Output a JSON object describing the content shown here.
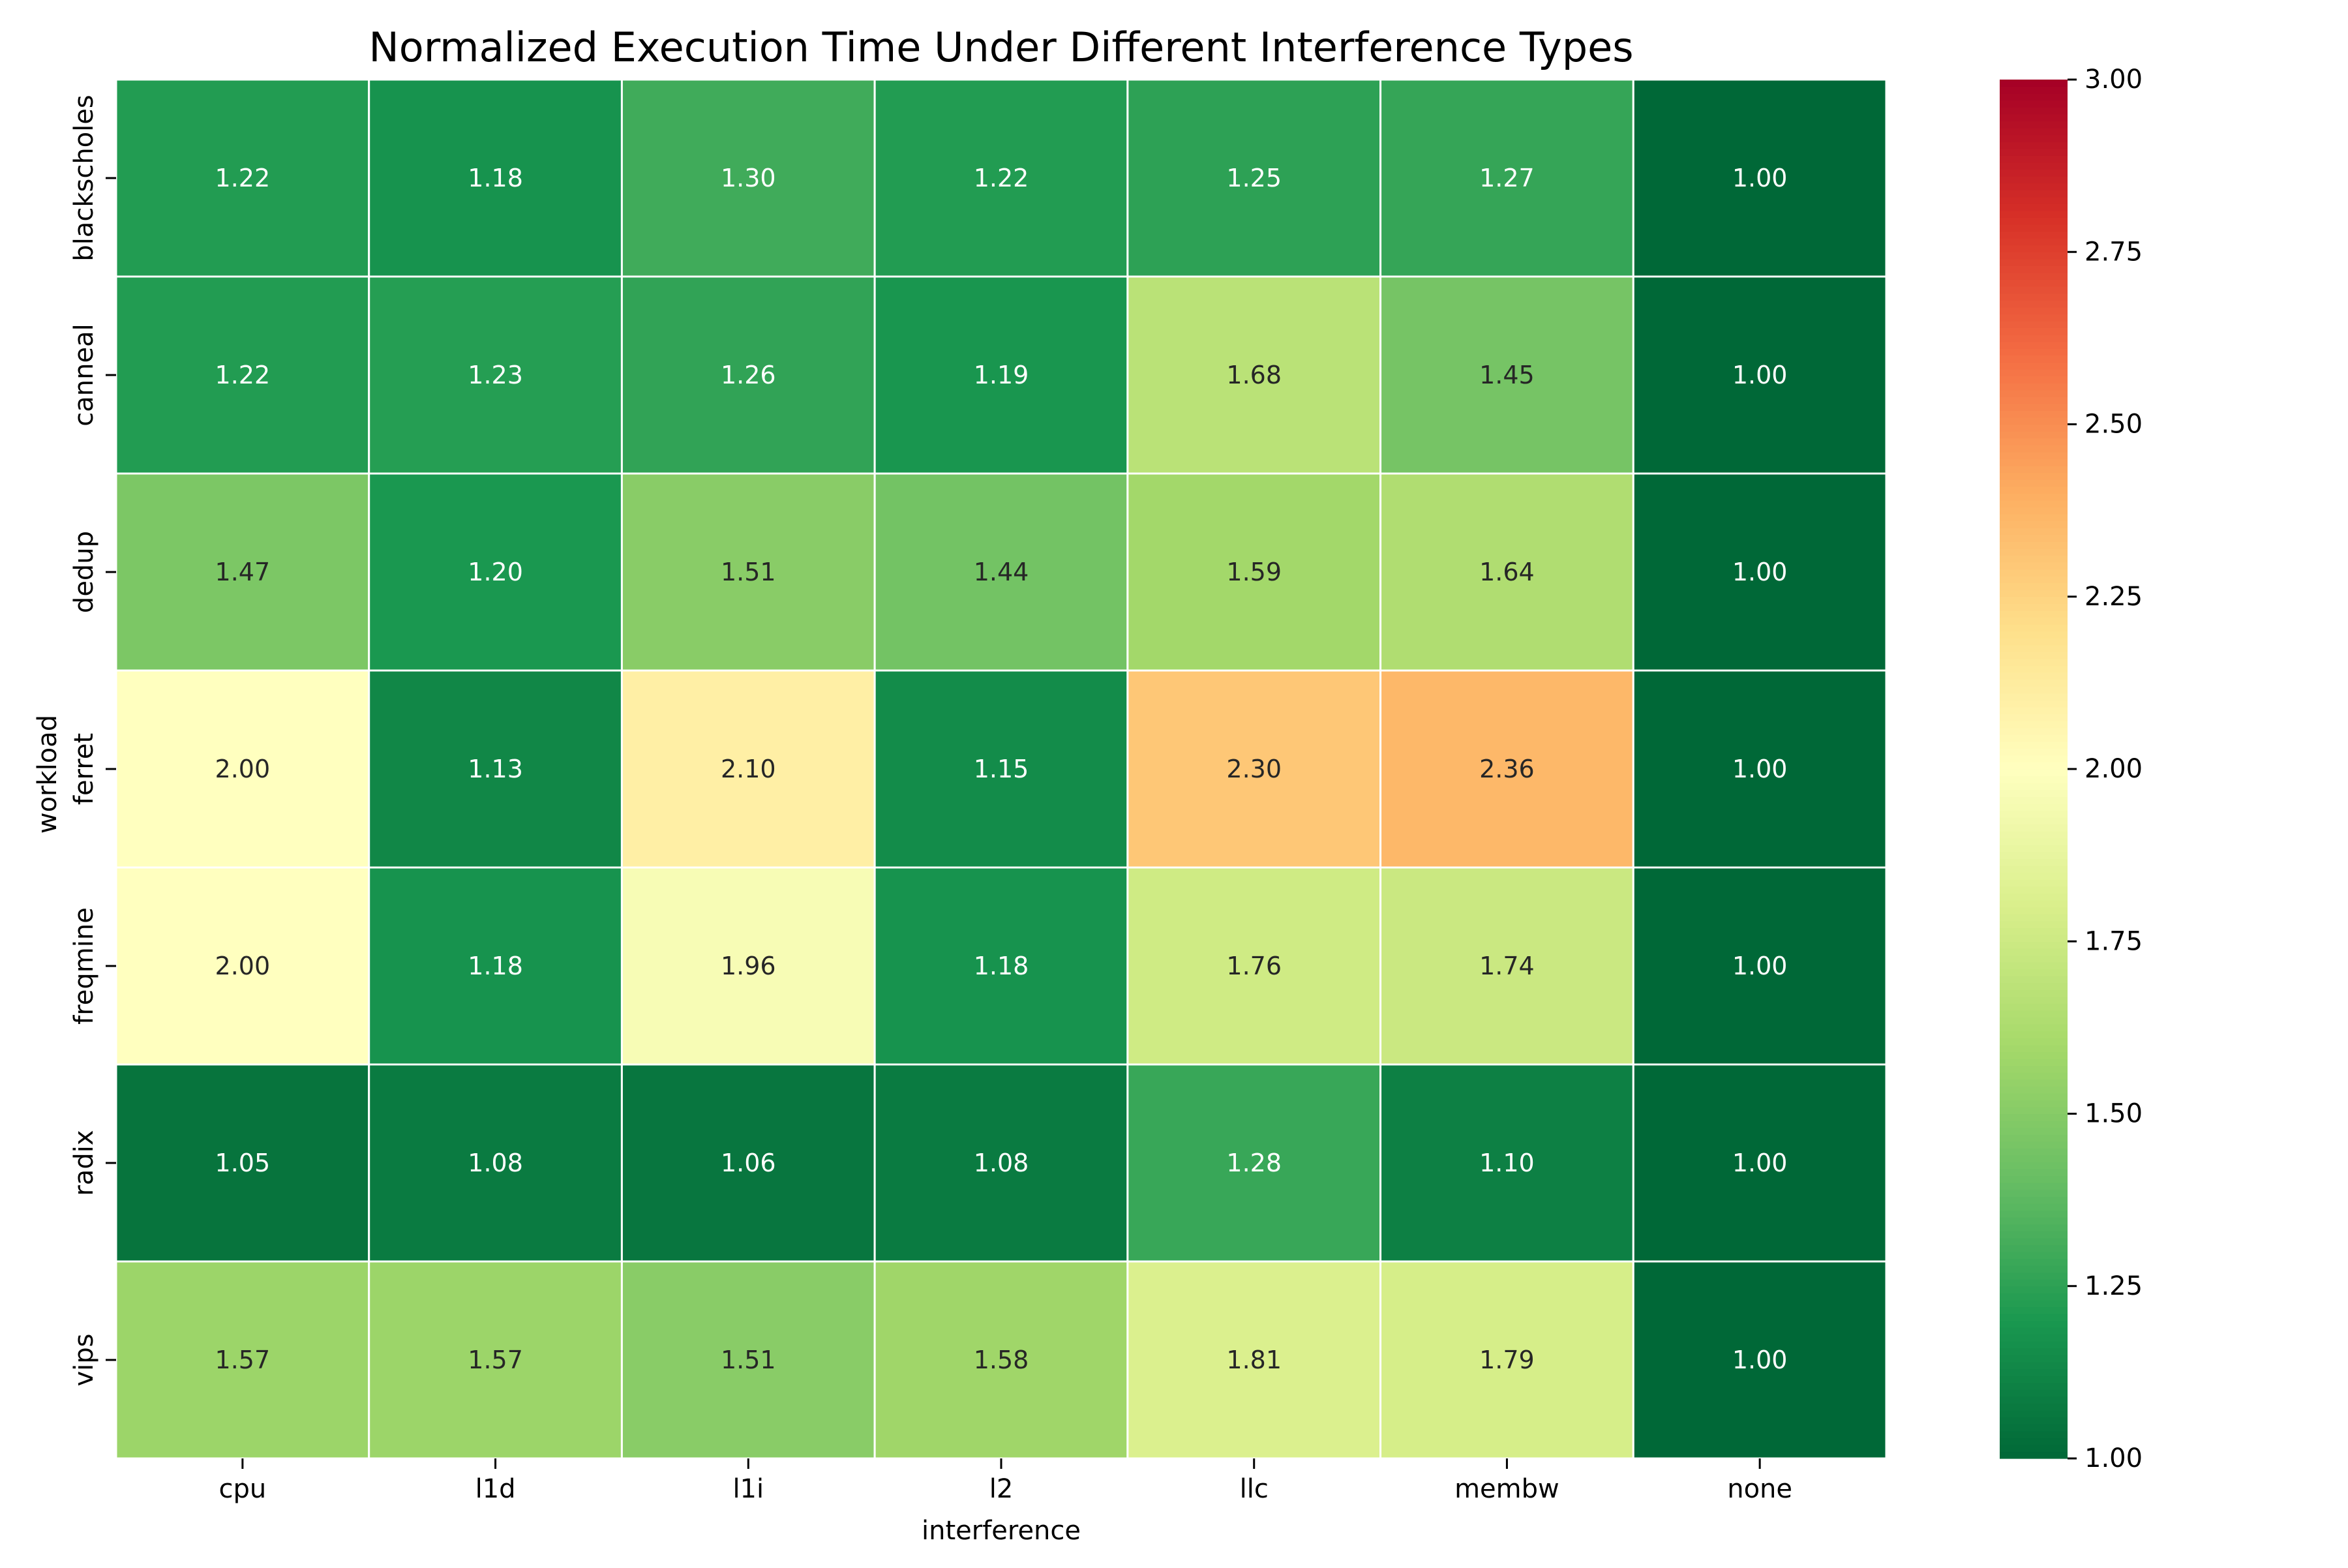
{
  "chart_data": {
    "type": "heatmap",
    "title": "Normalized Execution Time Under Different Interference Types",
    "xlabel": "interference",
    "ylabel": "workload",
    "x_categories": [
      "cpu",
      "l1d",
      "l1i",
      "l2",
      "llc",
      "membw",
      "none"
    ],
    "y_categories": [
      "blackscholes",
      "canneal",
      "dedup",
      "ferret",
      "freqmine",
      "radix",
      "vips"
    ],
    "values": [
      [
        1.22,
        1.18,
        1.3,
        1.22,
        1.25,
        1.27,
        1.0
      ],
      [
        1.22,
        1.23,
        1.26,
        1.19,
        1.68,
        1.45,
        1.0
      ],
      [
        1.47,
        1.2,
        1.51,
        1.44,
        1.59,
        1.64,
        1.0
      ],
      [
        2.0,
        1.13,
        2.1,
        1.15,
        2.3,
        2.36,
        1.0
      ],
      [
        2.0,
        1.18,
        1.96,
        1.18,
        1.76,
        1.74,
        1.0
      ],
      [
        1.05,
        1.08,
        1.06,
        1.08,
        1.28,
        1.1,
        1.0
      ],
      [
        1.57,
        1.57,
        1.51,
        1.58,
        1.81,
        1.79,
        1.0
      ]
    ],
    "value_labels": [
      [
        "1.22",
        "1.18",
        "1.30",
        "1.22",
        "1.25",
        "1.27",
        "1.00"
      ],
      [
        "1.22",
        "1.23",
        "1.26",
        "1.19",
        "1.68",
        "1.45",
        "1.00"
      ],
      [
        "1.47",
        "1.20",
        "1.51",
        "1.44",
        "1.59",
        "1.64",
        "1.00"
      ],
      [
        "2.00",
        "1.13",
        "2.10",
        "1.15",
        "2.30",
        "2.36",
        "1.00"
      ],
      [
        "2.00",
        "1.18",
        "1.96",
        "1.18",
        "1.76",
        "1.74",
        "1.00"
      ],
      [
        "1.05",
        "1.08",
        "1.06",
        "1.08",
        "1.28",
        "1.10",
        "1.00"
      ],
      [
        "1.57",
        "1.57",
        "1.51",
        "1.58",
        "1.81",
        "1.79",
        "1.00"
      ]
    ],
    "color_range": [
      1.0,
      3.0
    ],
    "colormap": "RdYlGn_r",
    "colorbar_ticks": [
      "1.00",
      "1.25",
      "1.50",
      "1.75",
      "2.00",
      "2.25",
      "2.50",
      "2.75",
      "3.00"
    ],
    "colorbar_tick_values": [
      1.0,
      1.25,
      1.5,
      1.75,
      2.0,
      2.25,
      2.5,
      2.75,
      3.0
    ],
    "grid": false,
    "cell_border_color": "#ffffff"
  }
}
